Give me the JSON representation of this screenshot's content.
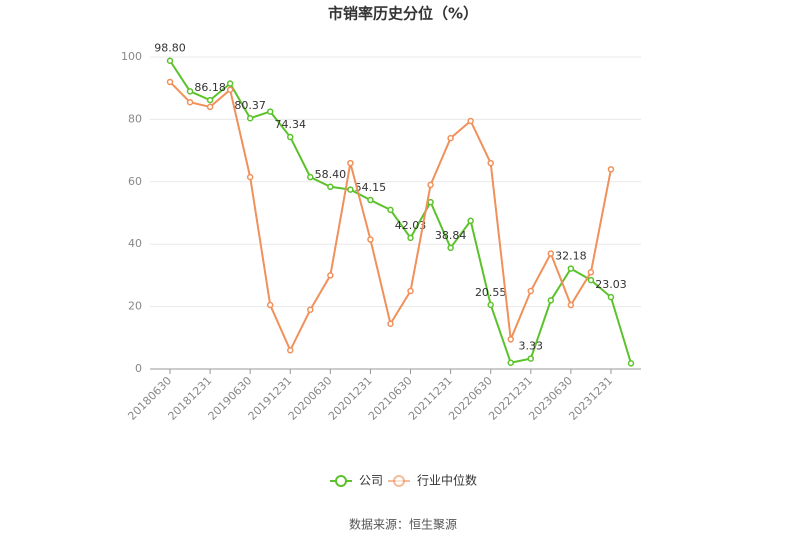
{
  "chart_data": {
    "type": "line",
    "title": "市销率历史分位（%）",
    "source": "数据来源：恒生聚源",
    "categories": [
      "20180630",
      null,
      "20181231",
      null,
      "20190630",
      null,
      "20191231",
      null,
      "20200630",
      null,
      "20201231",
      null,
      "20210630",
      null,
      "20211231",
      null,
      "20220630",
      null,
      "20221231",
      null,
      "20230630",
      null,
      "20231231",
      null
    ],
    "series": [
      {
        "name": "公司",
        "color": "#5bc22c",
        "values": [
          98.8,
          89,
          86.18,
          91.5,
          80.37,
          82.5,
          74.34,
          61.5,
          58.4,
          57.5,
          54.15,
          51,
          42.03,
          53.5,
          38.84,
          47.5,
          20.55,
          2,
          3.33,
          22,
          32.18,
          28.5,
          23.03,
          1.8
        ],
        "value_labels": [
          "98.80",
          null,
          "86.18",
          null,
          "80.37",
          null,
          "74.34",
          null,
          "58.40",
          null,
          "54.15",
          null,
          "42.03",
          null,
          "38.84",
          null,
          "20.55",
          null,
          "3.33",
          null,
          "32.18",
          null,
          "23.03",
          null
        ]
      },
      {
        "name": "行业中位数",
        "color": "#f0905a",
        "values": [
          92,
          85.5,
          84,
          89.5,
          61.5,
          20.5,
          6,
          19,
          30,
          66,
          41.5,
          14.5,
          25,
          59,
          74,
          79.5,
          66,
          9.5,
          25,
          37,
          20.5,
          31,
          64,
          null
        ]
      }
    ],
    "ylim": [
      0,
      100
    ],
    "yticks": [
      0,
      20,
      40,
      60,
      80,
      100
    ],
    "grid": true,
    "legend": "bottom"
  }
}
